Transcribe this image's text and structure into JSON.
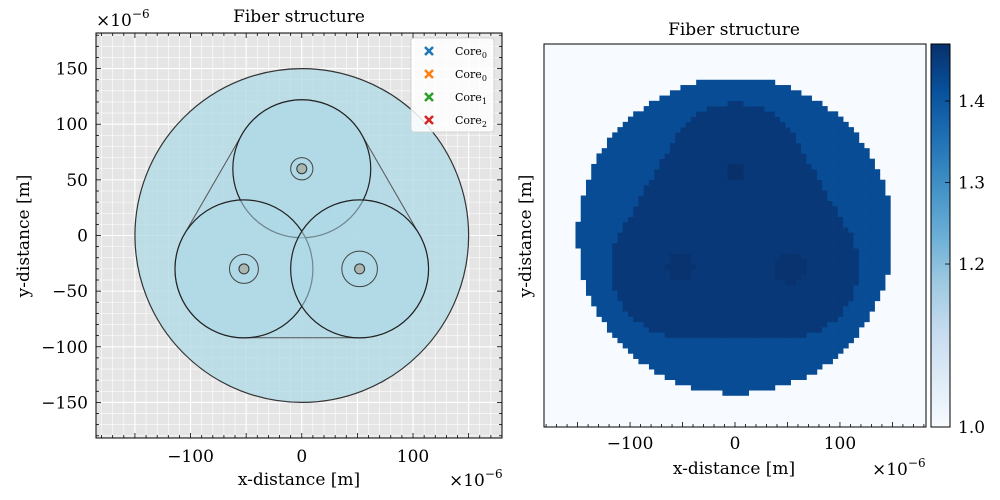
{
  "chart_data": [
    {
      "type": "scatter",
      "title": "Fiber structure",
      "xlabel": "x-distance [m]",
      "ylabel": "y-distance [m]",
      "x_scale_label": "×10",
      "x_scale_exp": "−6",
      "y_scale_label": "×10",
      "y_scale_exp": "−6",
      "xlim": [
        -185,
        180
      ],
      "ylim": [
        -182,
        182
      ],
      "grid": true,
      "legend_position": "top-right",
      "xticks": [
        {
          "value": -100,
          "label": "−100"
        },
        {
          "value": 0,
          "label": "0"
        },
        {
          "value": 100,
          "label": "100"
        }
      ],
      "yticks": [
        {
          "value": 150,
          "label": "150"
        },
        {
          "value": 100,
          "label": "100"
        },
        {
          "value": 50,
          "label": "50"
        },
        {
          "value": 0,
          "label": "0"
        },
        {
          "value": -50,
          "label": "−50"
        },
        {
          "value": -100,
          "label": "−100"
        },
        {
          "value": -150,
          "label": "−150"
        }
      ],
      "cladding": {
        "cx": 0,
        "cy": 0,
        "r": 150,
        "color": "#add8e6"
      },
      "inner_cores": [
        {
          "cx": 0,
          "cy": 60,
          "r": 62
        },
        {
          "cx": -52,
          "cy": -30,
          "r": 62
        },
        {
          "cx": 52,
          "cy": -30,
          "r": 62
        }
      ],
      "small_cores": [
        {
          "cx": 0,
          "cy": 60,
          "r_outer": 10,
          "r_inner": 4.5
        },
        {
          "cx": -52,
          "cy": -30,
          "r_outer": 13,
          "r_inner": 4.5
        },
        {
          "cx": 52,
          "cy": -30,
          "r_outer": 16,
          "r_inner": 4.5
        }
      ],
      "series": [
        {
          "name": "Core",
          "sub": "0",
          "color": "#1f77b4",
          "marker": "x"
        },
        {
          "name": "Core",
          "sub": "0",
          "color": "#ff7f0e",
          "marker": "x"
        },
        {
          "name": "Core",
          "sub": "1",
          "color": "#2ca02c",
          "marker": "x"
        },
        {
          "name": "Core",
          "sub": "2",
          "color": "#d62728",
          "marker": "x"
        }
      ]
    },
    {
      "type": "heatmap",
      "title": "Fiber structure",
      "xlabel": "x-distance [m]",
      "ylabel": "y-distance [m]",
      "x_scale_label": "×10",
      "x_scale_exp": "−6",
      "xlim": [
        -182,
        182
      ],
      "ylim": [
        -182,
        182
      ],
      "colormap": "Blues",
      "xticks": [
        {
          "value": -100,
          "label": "−100"
        },
        {
          "value": 0,
          "label": "0"
        },
        {
          "value": 100,
          "label": "100"
        }
      ],
      "regions": [
        {
          "shape": "disk",
          "cx": 0,
          "cy": 0,
          "r": 150,
          "index": 1.42
        },
        {
          "shape": "rounded-triangle",
          "cores": [
            [
              0,
              60
            ],
            [
              -52,
              -30
            ],
            [
              52,
              -30
            ]
          ],
          "r": 66,
          "index": 1.455
        },
        {
          "shape": "disk",
          "cx": 0,
          "cy": 60,
          "r": 9,
          "index": 1.47
        },
        {
          "shape": "disk",
          "cx": -52,
          "cy": -30,
          "r": 13,
          "index": 1.465
        },
        {
          "shape": "disk",
          "cx": 52,
          "cy": -30,
          "r": 15,
          "index": 1.465
        }
      ],
      "background_index": 1.0,
      "colorbar": {
        "vmin": 1.0,
        "vmax": 1.47,
        "ticks": [
          {
            "value": 1.4,
            "label": "1.4"
          },
          {
            "value": 1.3,
            "label": "1.3"
          },
          {
            "value": 1.2,
            "label": "1.2"
          },
          {
            "value": 1.0,
            "label": "1.0"
          }
        ]
      }
    }
  ]
}
